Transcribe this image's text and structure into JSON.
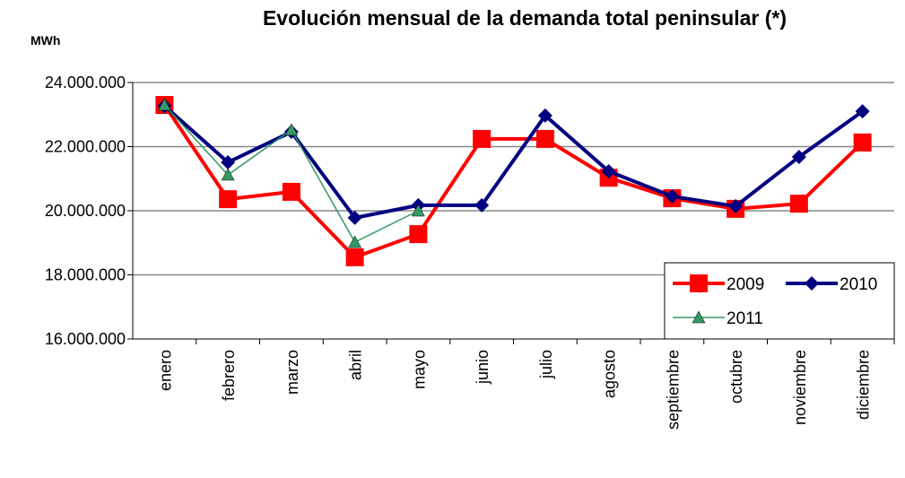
{
  "chart_data": {
    "type": "line",
    "title": "Evolución mensual de la demanda total peninsular (*)",
    "y_label": "MWh",
    "categories": [
      "enero",
      "febrero",
      "marzo",
      "abril",
      "mayo",
      "junio",
      "julio",
      "agosto",
      "septiembre",
      "octubre",
      "noviembre",
      "diciembre"
    ],
    "series": [
      {
        "name": "2009",
        "color": "#ff0000",
        "marker": "square",
        "values": [
          23300000,
          20360000,
          20590000,
          18550000,
          19270000,
          22240000,
          22240000,
          21030000,
          20390000,
          20060000,
          20220000,
          22130000
        ]
      },
      {
        "name": "2010",
        "color": "#000080",
        "marker": "diamond",
        "values": [
          23270000,
          21510000,
          22460000,
          19780000,
          20170000,
          20170000,
          22970000,
          21230000,
          20450000,
          20140000,
          21680000,
          23100000
        ]
      },
      {
        "name": "2011",
        "color": "#339966",
        "marker": "triangle",
        "values": [
          23300000,
          21120000,
          22520000,
          19020000,
          20000000,
          null,
          null,
          null,
          null,
          null,
          null,
          null
        ]
      }
    ],
    "ylim": [
      16000000,
      24000000
    ],
    "yticks": [
      {
        "value": 16000000,
        "label": "16.000.000"
      },
      {
        "value": 18000000,
        "label": "18.000.000"
      },
      {
        "value": 20000000,
        "label": "20.000.000"
      },
      {
        "value": 22000000,
        "label": "22.000.000"
      },
      {
        "value": 24000000,
        "label": "24.000.000"
      }
    ],
    "grid": true,
    "legend": "bottom-right"
  }
}
